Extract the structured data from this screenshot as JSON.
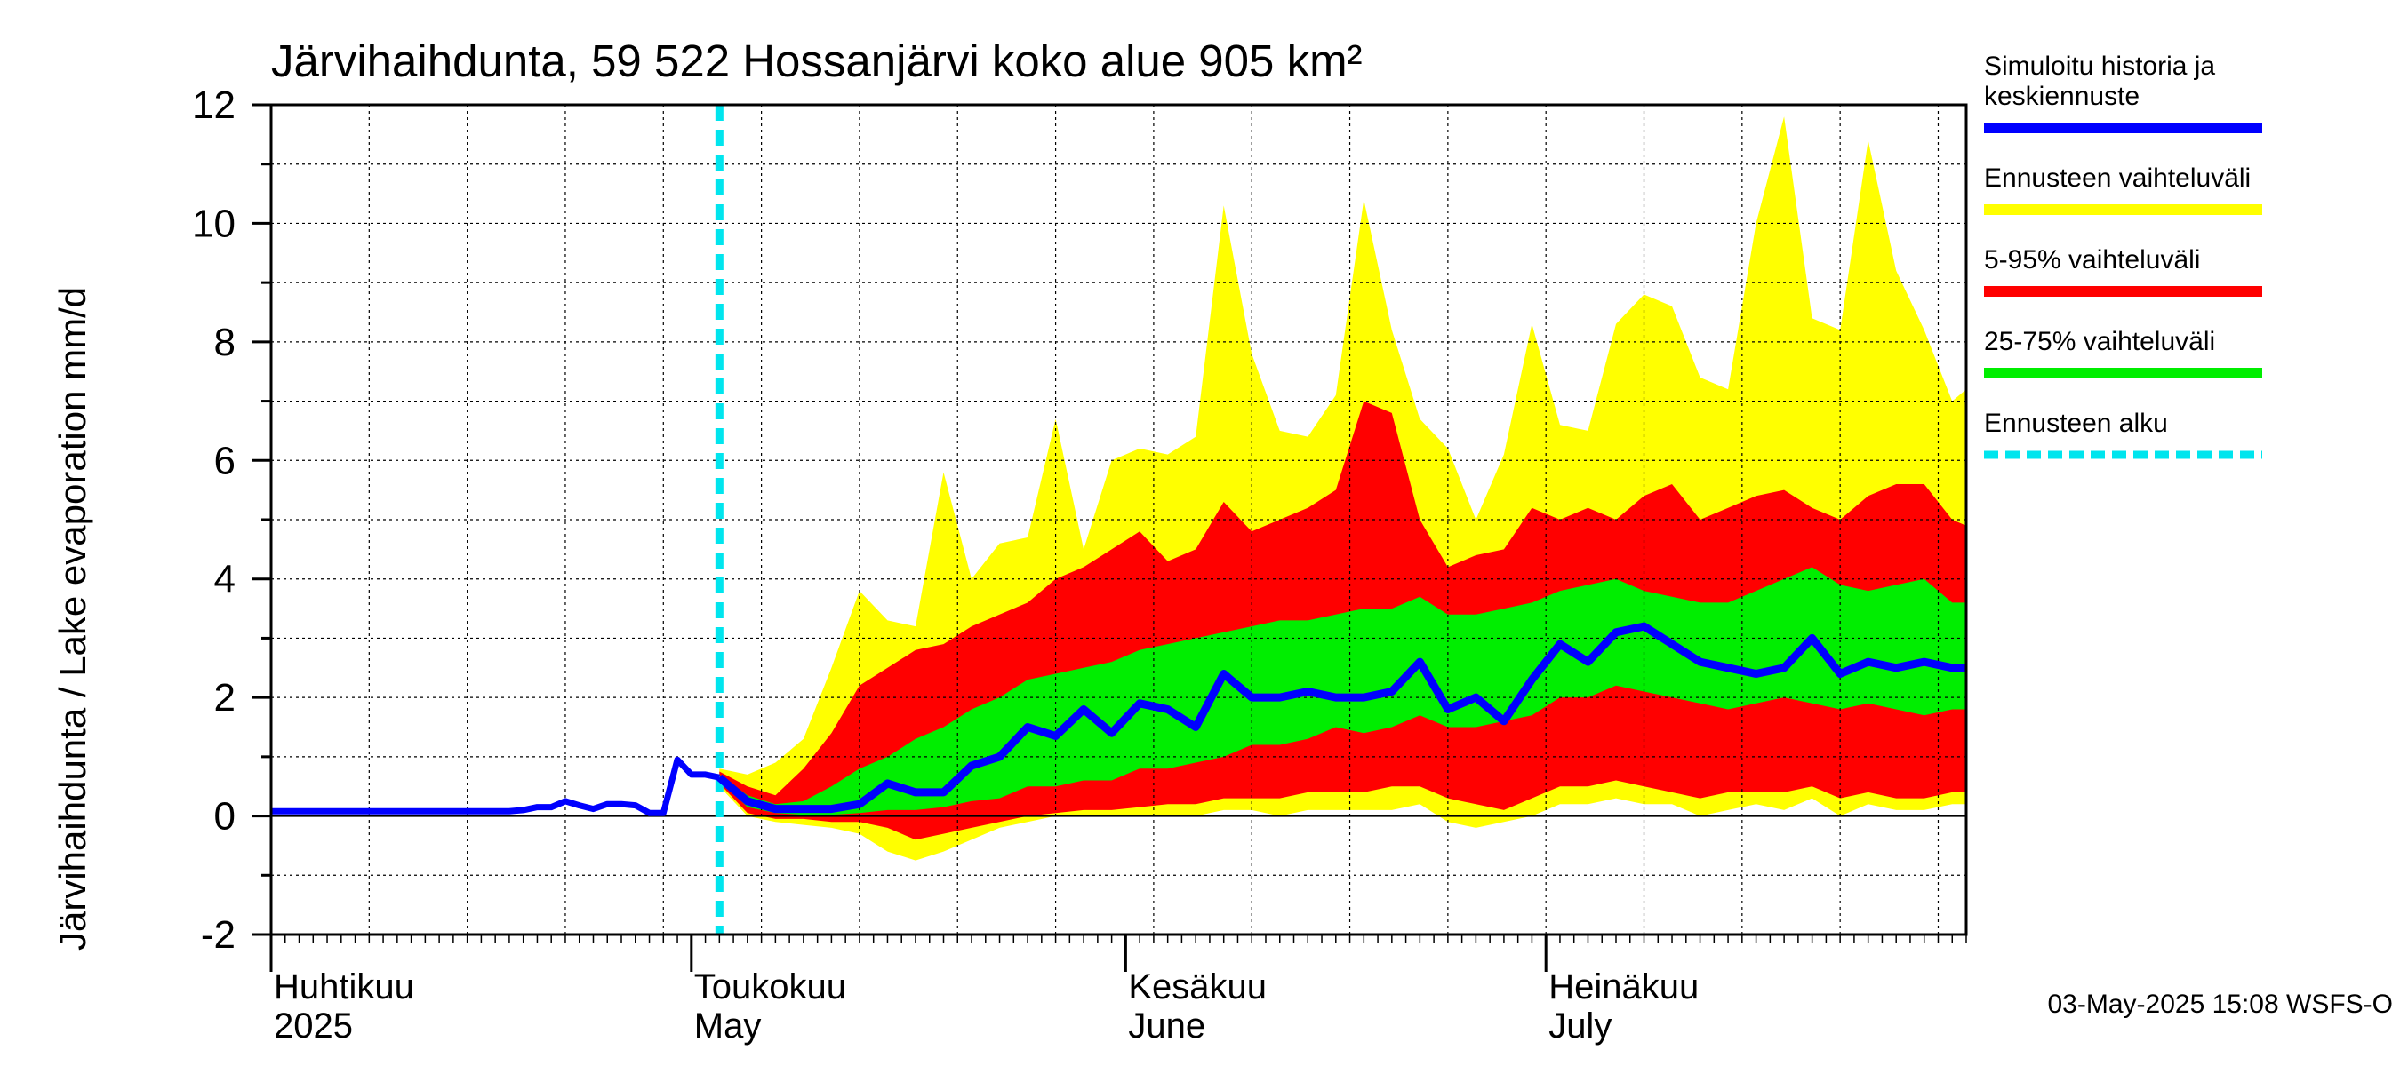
{
  "chart_data": {
    "type": "area",
    "title": "Järvihaihdunta, 59 522 Hossanjärvi koko alue 905 km²",
    "ylabel": "Järvihaihdunta / Lake evaporation   mm/d",
    "ylim": [
      -2,
      12
    ],
    "yticks": [
      "-2",
      "0",
      "2",
      "4",
      "6",
      "8",
      "10",
      "12"
    ],
    "x_start": "2025-04-01",
    "x_end": "2025-07-31",
    "forecast_start": "2025-05-03",
    "months": [
      {
        "fi": "Huhtikuu",
        "en": "2025",
        "date": "2025-04-01"
      },
      {
        "fi": "Toukokuu",
        "en": "May",
        "date": "2025-05-01"
      },
      {
        "fi": "Kesäkuu",
        "en": "June",
        "date": "2025-06-01"
      },
      {
        "fi": "Heinäkuu",
        "en": "July",
        "date": "2025-07-01"
      }
    ],
    "legend": [
      {
        "label": "Simuloitu historia ja keskiennuste",
        "lines": [
          "Simuloitu historia ja",
          "keskiennuste"
        ],
        "color": "#0000ff",
        "style": "solid"
      },
      {
        "label": "Ennusteen vaihteluväli",
        "lines": [
          "Ennusteen vaihteluväli"
        ],
        "color": "#ffff00",
        "style": "solid"
      },
      {
        "label": "5-95% vaihteluväli",
        "lines": [
          "5-95% vaihteluväli"
        ],
        "color": "#ff0000",
        "style": "solid"
      },
      {
        "label": "25-75% vaihteluväli",
        "lines": [
          "25-75% vaihteluväli"
        ],
        "color": "#00ee00",
        "style": "solid"
      },
      {
        "label": "Ennusteen alku",
        "lines": [
          "Ennusteen alku"
        ],
        "color": "#00e5ee",
        "style": "dashed"
      }
    ],
    "colors": {
      "median": "#0000ff",
      "range": "#ffff00",
      "p5_95": "#ff0000",
      "p25_75": "#00ee00",
      "forecast_start": "#00e5ee"
    },
    "history": {
      "dates": [
        "2025-04-01",
        "2025-04-18",
        "2025-04-19",
        "2025-04-20",
        "2025-04-21",
        "2025-04-22",
        "2025-04-23",
        "2025-04-24",
        "2025-04-25",
        "2025-04-26",
        "2025-04-27",
        "2025-04-28",
        "2025-04-29",
        "2025-04-30",
        "2025-05-01",
        "2025-05-02",
        "2025-05-03"
      ],
      "values": [
        0.08,
        0.08,
        0.1,
        0.15,
        0.15,
        0.25,
        0.18,
        0.12,
        0.2,
        0.2,
        0.18,
        0.05,
        0.05,
        0.95,
        0.7,
        0.7,
        0.65
      ]
    },
    "forecast": {
      "dates": [
        "2025-05-03",
        "2025-05-05",
        "2025-05-07",
        "2025-05-09",
        "2025-05-11",
        "2025-05-13",
        "2025-05-15",
        "2025-05-17",
        "2025-05-19",
        "2025-05-21",
        "2025-05-23",
        "2025-05-25",
        "2025-05-27",
        "2025-05-29",
        "2025-05-31",
        "2025-06-02",
        "2025-06-04",
        "2025-06-06",
        "2025-06-08",
        "2025-06-10",
        "2025-06-12",
        "2025-06-14",
        "2025-06-16",
        "2025-06-18",
        "2025-06-20",
        "2025-06-22",
        "2025-06-24",
        "2025-06-26",
        "2025-06-28",
        "2025-06-30",
        "2025-07-02",
        "2025-07-04",
        "2025-07-06",
        "2025-07-08",
        "2025-07-10",
        "2025-07-12",
        "2025-07-14",
        "2025-07-16",
        "2025-07-18",
        "2025-07-20",
        "2025-07-22",
        "2025-07-24",
        "2025-07-26",
        "2025-07-28",
        "2025-07-30",
        "2025-07-31"
      ],
      "median": [
        0.65,
        0.25,
        0.12,
        0.12,
        0.12,
        0.2,
        0.55,
        0.4,
        0.4,
        0.85,
        1.0,
        1.5,
        1.35,
        1.8,
        1.4,
        1.9,
        1.8,
        1.5,
        2.4,
        2.0,
        2.0,
        2.1,
        2.0,
        2.0,
        2.1,
        2.6,
        1.8,
        2.0,
        1.6,
        2.3,
        2.9,
        2.6,
        3.1,
        3.2,
        2.9,
        2.6,
        2.5,
        2.4,
        2.5,
        3.0,
        2.4,
        2.6,
        2.5,
        2.6,
        2.5,
        2.5
      ],
      "p25": [
        0.6,
        0.15,
        0.05,
        0.02,
        0.02,
        0.05,
        0.1,
        0.1,
        0.15,
        0.25,
        0.3,
        0.5,
        0.5,
        0.6,
        0.6,
        0.8,
        0.8,
        0.9,
        1.0,
        1.2,
        1.2,
        1.3,
        1.5,
        1.4,
        1.5,
        1.7,
        1.5,
        1.5,
        1.6,
        1.7,
        2.0,
        2.0,
        2.2,
        2.1,
        2.0,
        1.9,
        1.8,
        1.9,
        2.0,
        1.9,
        1.8,
        1.9,
        1.8,
        1.7,
        1.8,
        1.8
      ],
      "p75": [
        0.7,
        0.35,
        0.2,
        0.25,
        0.5,
        0.8,
        1.0,
        1.3,
        1.5,
        1.8,
        2.0,
        2.3,
        2.4,
        2.5,
        2.6,
        2.8,
        2.9,
        3.0,
        3.1,
        3.2,
        3.3,
        3.3,
        3.4,
        3.5,
        3.5,
        3.7,
        3.4,
        3.4,
        3.5,
        3.6,
        3.8,
        3.9,
        4.0,
        3.8,
        3.7,
        3.6,
        3.6,
        3.8,
        4.0,
        4.2,
        3.9,
        3.8,
        3.9,
        4.0,
        3.6,
        3.6
      ],
      "p5": [
        0.55,
        0.05,
        -0.05,
        -0.05,
        -0.1,
        -0.1,
        -0.2,
        -0.4,
        -0.3,
        -0.2,
        -0.1,
        0.0,
        0.05,
        0.1,
        0.1,
        0.15,
        0.2,
        0.2,
        0.3,
        0.3,
        0.3,
        0.4,
        0.4,
        0.4,
        0.5,
        0.5,
        0.3,
        0.2,
        0.1,
        0.3,
        0.5,
        0.5,
        0.6,
        0.5,
        0.4,
        0.3,
        0.4,
        0.4,
        0.4,
        0.5,
        0.3,
        0.4,
        0.3,
        0.3,
        0.4,
        0.4
      ],
      "p95": [
        0.75,
        0.5,
        0.35,
        0.8,
        1.4,
        2.2,
        2.5,
        2.8,
        2.9,
        3.2,
        3.4,
        3.6,
        4.0,
        4.2,
        4.5,
        4.8,
        4.3,
        4.5,
        5.3,
        4.8,
        5.0,
        5.2,
        5.5,
        7.0,
        6.8,
        5.0,
        4.2,
        4.4,
        4.5,
        5.2,
        5.0,
        5.2,
        5.0,
        5.4,
        5.6,
        5.0,
        5.2,
        5.4,
        5.5,
        5.2,
        5.0,
        5.4,
        5.6,
        5.6,
        5.0,
        4.9
      ],
      "min": [
        0.5,
        0.0,
        -0.1,
        -0.15,
        -0.2,
        -0.3,
        -0.6,
        -0.75,
        -0.6,
        -0.4,
        -0.2,
        -0.1,
        0.0,
        0.0,
        0.0,
        0.0,
        0.0,
        0.0,
        0.1,
        0.1,
        0.0,
        0.1,
        0.1,
        0.1,
        0.1,
        0.2,
        -0.1,
        -0.2,
        -0.1,
        0.0,
        0.2,
        0.2,
        0.3,
        0.2,
        0.2,
        0.0,
        0.1,
        0.2,
        0.1,
        0.3,
        0.0,
        0.2,
        0.1,
        0.1,
        0.2,
        0.2
      ],
      "max": [
        0.8,
        0.7,
        0.9,
        1.3,
        2.5,
        3.8,
        3.3,
        3.2,
        5.8,
        4.0,
        4.6,
        4.7,
        6.7,
        4.5,
        6.0,
        6.2,
        6.1,
        6.4,
        10.3,
        7.8,
        6.5,
        6.4,
        7.1,
        10.4,
        8.2,
        6.7,
        6.2,
        5.0,
        6.1,
        8.3,
        6.6,
        6.5,
        8.3,
        8.8,
        8.6,
        7.4,
        7.2,
        10.0,
        11.8,
        8.4,
        8.2,
        11.4,
        9.2,
        8.2,
        7.0,
        7.2
      ]
    }
  },
  "footer": {
    "timestamp": "03-May-2025 15:08 WSFS-O"
  }
}
